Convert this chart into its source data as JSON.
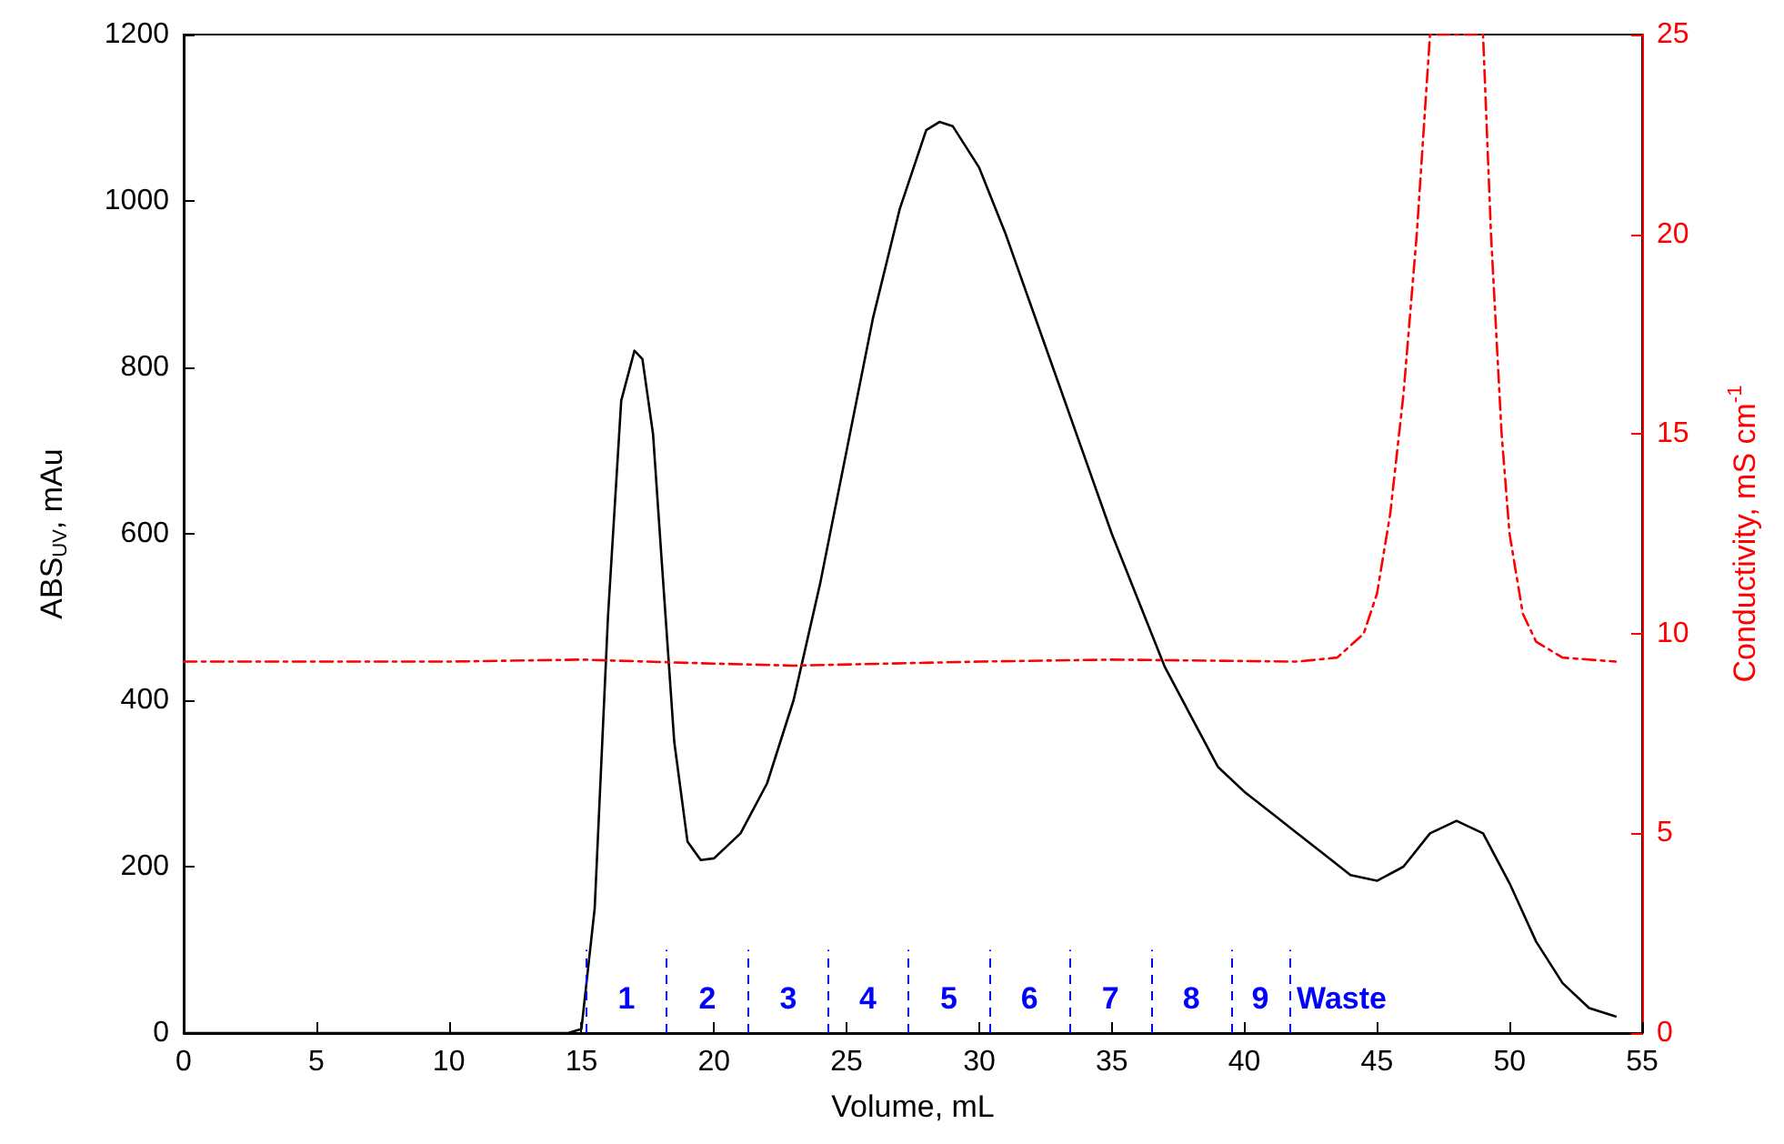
{
  "chart_data": {
    "type": "line",
    "xlabel": "Volume, mL",
    "ylabel": "ABS$_{UV}$, mAu",
    "y2label": "Conductivity, mS cm$^{-1}$",
    "x": [
      0,
      14.5,
      15,
      15.5,
      16,
      16.5,
      17,
      17.3,
      17.7,
      18,
      18.5,
      19,
      19.5,
      20,
      21,
      22,
      23,
      24,
      25,
      26,
      27,
      28,
      28.5,
      29,
      30,
      31,
      32,
      33,
      34,
      35,
      36,
      37,
      38,
      39,
      40,
      41,
      42,
      43,
      44,
      45,
      46,
      47,
      48,
      49,
      50,
      51,
      52,
      53,
      54
    ],
    "series": [
      {
        "color": "#000000",
        "line_style": "solid",
        "values": [
          0,
          0,
          5,
          150,
          500,
          760,
          820,
          810,
          720,
          580,
          350,
          230,
          208,
          210,
          240,
          300,
          400,
          540,
          700,
          860,
          990,
          1085,
          1095,
          1090,
          1040,
          960,
          870,
          780,
          690,
          600,
          520,
          440,
          380,
          320,
          290,
          265,
          240,
          215,
          190,
          183,
          200,
          240,
          255,
          240,
          180,
          110,
          60,
          30,
          20
        ]
      },
      {
        "color": "#ff0000",
        "line_style": "dashed",
        "axis": "y2",
        "x": [
          0,
          5,
          10,
          15,
          20,
          23,
          30,
          35,
          42,
          43.5,
          44.5,
          45,
          45.5,
          46,
          46.5,
          47,
          49,
          49.3,
          49.7,
          50,
          50.5,
          51,
          52,
          54
        ],
        "values": [
          9.3,
          9.3,
          9.3,
          9.35,
          9.25,
          9.2,
          9.3,
          9.35,
          9.3,
          9.4,
          10,
          11,
          13,
          16,
          20,
          25,
          25,
          20,
          15,
          12.5,
          10.5,
          9.8,
          9.4,
          9.3
        ]
      }
    ],
    "xlim": [
      0,
      55
    ],
    "xticks": [
      0,
      5,
      10,
      15,
      20,
      25,
      30,
      35,
      40,
      45,
      50,
      55
    ],
    "ylim": [
      0,
      1200
    ],
    "yticks": [
      0,
      200,
      400,
      600,
      800,
      1000,
      1200
    ],
    "y2lim": [
      0,
      25
    ],
    "y2ticks": [
      0,
      5,
      10,
      15,
      20,
      25
    ],
    "ref_lines": [
      {
        "axis": "x",
        "value": 15.2,
        "color": "#0000ff",
        "line_style": "dashed"
      },
      {
        "axis": "x",
        "value": 18.2,
        "color": "#0000ff",
        "line_style": "dashed"
      },
      {
        "axis": "x",
        "value": 21.3,
        "color": "#0000ff",
        "line_style": "dashed"
      },
      {
        "axis": "x",
        "value": 24.3,
        "color": "#0000ff",
        "line_style": "dashed"
      },
      {
        "axis": "x",
        "value": 27.3,
        "color": "#0000ff",
        "line_style": "dashed"
      },
      {
        "axis": "x",
        "value": 30.4,
        "color": "#0000ff",
        "line_style": "dashed"
      },
      {
        "axis": "x",
        "value": 33.4,
        "color": "#0000ff",
        "line_style": "dashed"
      },
      {
        "axis": "x",
        "value": 36.5,
        "color": "#0000ff",
        "line_style": "dashed"
      },
      {
        "axis": "x",
        "value": 39.5,
        "color": "#0000ff",
        "line_style": "dashed"
      },
      {
        "axis": "x",
        "value": 41.7,
        "color": "#0000ff",
        "line_style": "dashed"
      }
    ],
    "annotations": [
      "1",
      "2",
      "3",
      "4",
      "5",
      "6",
      "7",
      "8",
      "9",
      "Waste"
    ],
    "marker": "none",
    "grid": false
  }
}
